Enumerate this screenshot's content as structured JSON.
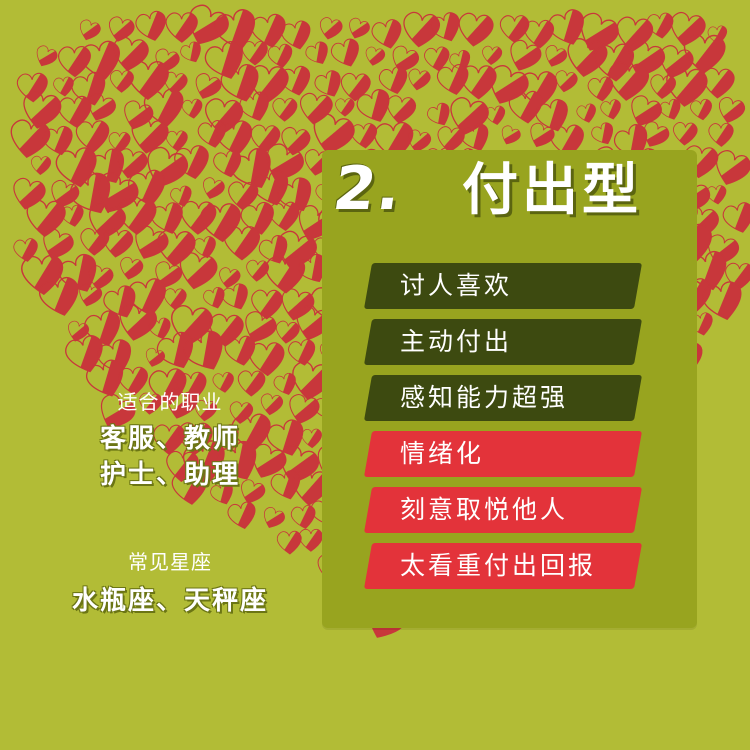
{
  "title": {
    "number": "2.",
    "text": "付出型"
  },
  "traits": [
    {
      "label": "讨人喜欢",
      "style": "dark"
    },
    {
      "label": "主动付出",
      "style": "dark"
    },
    {
      "label": "感知能力超强",
      "style": "dark"
    },
    {
      "label": "情绪化",
      "style": "red"
    },
    {
      "label": "刻意取悦他人",
      "style": "red"
    },
    {
      "label": "太看重付出回报",
      "style": "red"
    }
  ],
  "careers": {
    "heading": "适合的职业",
    "line1": "客服、教师",
    "line2": "护士、助理"
  },
  "zodiac": {
    "heading": "常见星座",
    "line1": "水瓶座、天秤座"
  },
  "colors": {
    "background": "#b2bc36",
    "card": "#98a41f",
    "dark_trait": "#3d4a10",
    "red_trait": "#e3333a",
    "heart_stroke": "#c8373b"
  }
}
